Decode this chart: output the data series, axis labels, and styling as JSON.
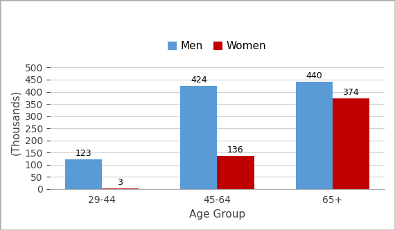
{
  "categories": [
    "29-44",
    "45-64",
    "65+"
  ],
  "men_values": [
    123,
    424,
    440
  ],
  "women_values": [
    3,
    136,
    374
  ],
  "men_color": "#5B9BD5",
  "women_color": "#C00000",
  "xlabel": "Age Group",
  "ylabel": "(Thousands)",
  "ylim": [
    0,
    550
  ],
  "yticks": [
    0,
    50,
    100,
    150,
    200,
    250,
    300,
    350,
    400,
    450,
    500
  ],
  "legend_labels": [
    "Men",
    "Women"
  ],
  "bar_width": 0.32,
  "label_fontsize": 11,
  "tick_fontsize": 10,
  "annotation_fontsize": 9,
  "background_color": "#FFFFFF",
  "grid_color": "#D0D0D0",
  "figure_border_color": "#AAAAAA"
}
